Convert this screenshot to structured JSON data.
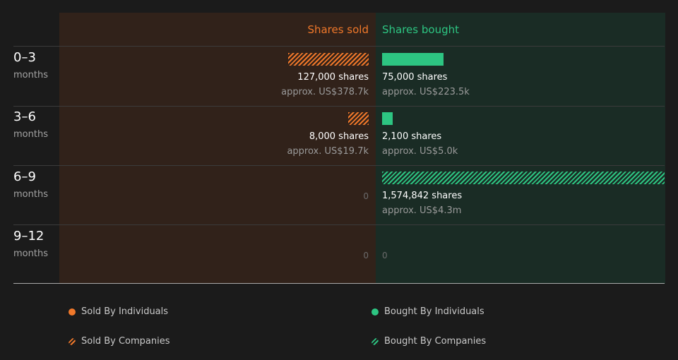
{
  "chart_data": {
    "type": "bar",
    "orientation": "horizontal-diverging",
    "columns": {
      "sold": "Shares sold",
      "bought": "Shares bought"
    },
    "periods": [
      {
        "range": "0–3",
        "unit": "months",
        "sold": {
          "shares": 127000,
          "shares_label": "127,000 shares",
          "approx": "approx. US$378.7k",
          "series": "Sold By Companies"
        },
        "bought": {
          "shares": 75000,
          "shares_label": "75,000 shares",
          "approx": "approx. US$223.5k",
          "series": "Bought By Individuals"
        }
      },
      {
        "range": "3–6",
        "unit": "months",
        "sold": {
          "shares": 8000,
          "shares_label": "8,000 shares",
          "approx": "approx. US$19.7k",
          "series": "Sold By Companies"
        },
        "bought": {
          "shares": 2100,
          "shares_label": "2,100 shares",
          "approx": "approx. US$5.0k",
          "series": "Bought By Individuals"
        }
      },
      {
        "range": "6–9",
        "unit": "months",
        "sold": {
          "shares": 0,
          "zero_label": "0"
        },
        "bought": {
          "shares": 1574842,
          "shares_label": "1,574,842 shares",
          "approx": "approx. US$4.3m",
          "series": "Bought By Companies"
        }
      },
      {
        "range": "9–12",
        "unit": "months",
        "sold": {
          "shares": 0,
          "zero_label": "0"
        },
        "bought": {
          "shares": 0,
          "zero_label": "0"
        }
      }
    ],
    "max_shares": 1574842,
    "legend": [
      {
        "label": "Sold By Individuals",
        "color": "#f0782a",
        "pattern": "solid"
      },
      {
        "label": "Bought By Individuals",
        "color": "#2dc582",
        "pattern": "solid"
      },
      {
        "label": "Sold By Companies",
        "color": "#f0782a",
        "pattern": "hatched"
      },
      {
        "label": "Bought By Companies",
        "color": "#2dc582",
        "pattern": "hatched"
      }
    ],
    "colors": {
      "sold": "#f0782a",
      "bought": "#2dc582"
    }
  }
}
